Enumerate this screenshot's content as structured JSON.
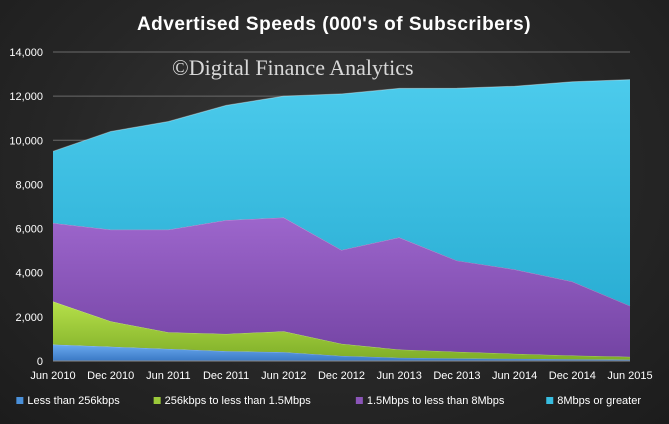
{
  "chart_data": {
    "type": "area",
    "stacked": true,
    "title": "Advertised  Speeds  (000's of Subscribers)",
    "watermark": "©Digital Finance Analytics",
    "categories": [
      "Jun 2010",
      "Dec 2010",
      "Jun 2011",
      "Dec 2011",
      "Jun 2012",
      "Dec 2012",
      "Jun 2013",
      "Dec 2013",
      "Jun 2014",
      "Dec 2014",
      "Jun 2015"
    ],
    "ylim": [
      0,
      14000
    ],
    "yticks": [
      "0",
      "2,000",
      "4,000",
      "6,000",
      "8,000",
      "10,000",
      "12,000",
      "14,000"
    ],
    "ytick_values": [
      0,
      2000,
      4000,
      6000,
      8000,
      10000,
      12000,
      14000
    ],
    "grid": true,
    "legend_position": "bottom",
    "series": [
      {
        "name": "Less than 256kbps",
        "color": "#4a90d9",
        "values": [
          750,
          650,
          550,
          450,
          400,
          230,
          150,
          120,
          100,
          80,
          60
        ]
      },
      {
        "name": "256kbps to less than 1.5Mbps",
        "color": "#9bc93a",
        "values": [
          1950,
          1150,
          750,
          780,
          950,
          550,
          370,
          300,
          230,
          170,
          130
        ]
      },
      {
        "name": "1.5Mbps to less than 8Mbps",
        "color": "#8b55b8",
        "values": [
          3550,
          4150,
          4650,
          5150,
          5150,
          4250,
          5080,
          4130,
          3820,
          3350,
          2310
        ]
      },
      {
        "name": "8Mbps or greater",
        "color": "#38bde0",
        "values": [
          3250,
          4450,
          4900,
          5200,
          5500,
          7070,
          6750,
          7810,
          8300,
          9050,
          10250
        ]
      }
    ]
  }
}
